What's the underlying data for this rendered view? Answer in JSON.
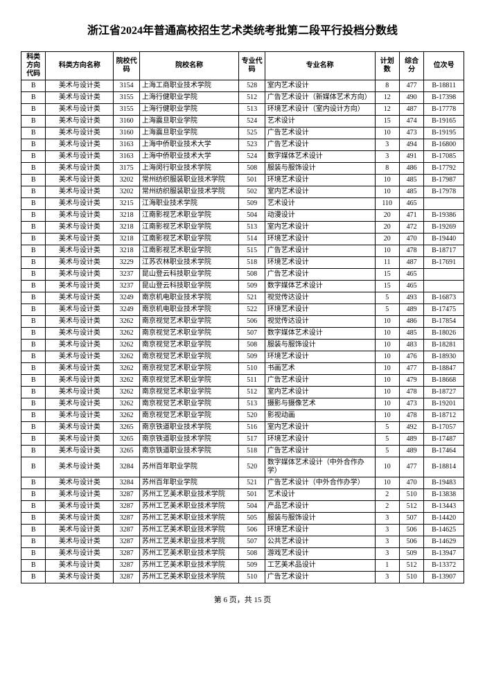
{
  "title": "浙江省2024年普通高校招生艺术类统考批第二段平行投档分数线",
  "footer": "第 6 页，共 15 页",
  "columns": [
    "科类方向代码",
    "科类方向名称",
    "院校代码",
    "院校名称",
    "专业代码",
    "专业名称",
    "计划数",
    "综合分",
    "位次号"
  ],
  "rows": [
    [
      "B",
      "美术与设计类",
      "3154",
      "上海工商职业技术学院",
      "528",
      "室内艺术设计",
      "8",
      "477",
      "B-18811"
    ],
    [
      "B",
      "美术与设计类",
      "3155",
      "上海行健职业学院",
      "512",
      "广告艺术设计（新媒体艺术方向）",
      "12",
      "490",
      "B-17398"
    ],
    [
      "B",
      "美术与设计类",
      "3155",
      "上海行健职业学院",
      "513",
      "环境艺术设计（室内设计方向）",
      "12",
      "487",
      "B-17778"
    ],
    [
      "B",
      "美术与设计类",
      "3160",
      "上海震旦职业学院",
      "524",
      "艺术设计",
      "15",
      "474",
      "B-19165"
    ],
    [
      "B",
      "美术与设计类",
      "3160",
      "上海震旦职业学院",
      "525",
      "广告艺术设计",
      "10",
      "473",
      "B-19195"
    ],
    [
      "B",
      "美术与设计类",
      "3163",
      "上海中侨职业技术大学",
      "523",
      "广告艺术设计",
      "3",
      "494",
      "B-16800"
    ],
    [
      "B",
      "美术与设计类",
      "3163",
      "上海中侨职业技术大学",
      "524",
      "数字媒体艺术设计",
      "3",
      "491",
      "B-17085"
    ],
    [
      "B",
      "美术与设计类",
      "3175",
      "上海闵行职业技术学院",
      "508",
      "服装与服饰设计",
      "8",
      "486",
      "B-17792"
    ],
    [
      "B",
      "美术与设计类",
      "3202",
      "常州纺织服装职业技术学院",
      "501",
      "环境艺术设计",
      "10",
      "485",
      "B-17987"
    ],
    [
      "B",
      "美术与设计类",
      "3202",
      "常州纺织服装职业技术学院",
      "502",
      "室内艺术设计",
      "10",
      "485",
      "B-17978"
    ],
    [
      "B",
      "美术与设计类",
      "3215",
      "江海职业技术学院",
      "509",
      "艺术设计",
      "110",
      "465",
      ""
    ],
    [
      "B",
      "美术与设计类",
      "3218",
      "江南影视艺术职业学院",
      "504",
      "动漫设计",
      "20",
      "471",
      "B-19386"
    ],
    [
      "B",
      "美术与设计类",
      "3218",
      "江南影视艺术职业学院",
      "513",
      "室内艺术设计",
      "20",
      "472",
      "B-19269"
    ],
    [
      "B",
      "美术与设计类",
      "3218",
      "江南影视艺术职业学院",
      "514",
      "环境艺术设计",
      "20",
      "470",
      "B-19440"
    ],
    [
      "B",
      "美术与设计类",
      "3218",
      "江南影视艺术职业学院",
      "515",
      "广告艺术设计",
      "10",
      "478",
      "B-18717"
    ],
    [
      "B",
      "美术与设计类",
      "3229",
      "江苏农林职业技术学院",
      "518",
      "环境艺术设计",
      "11",
      "487",
      "B-17691"
    ],
    [
      "B",
      "美术与设计类",
      "3237",
      "昆山登云科技职业学院",
      "508",
      "广告艺术设计",
      "15",
      "465",
      ""
    ],
    [
      "B",
      "美术与设计类",
      "3237",
      "昆山登云科技职业学院",
      "509",
      "数字媒体艺术设计",
      "15",
      "465",
      ""
    ],
    [
      "B",
      "美术与设计类",
      "3249",
      "南京机电职业技术学院",
      "521",
      "视觉传达设计",
      "5",
      "493",
      "B-16873"
    ],
    [
      "B",
      "美术与设计类",
      "3249",
      "南京机电职业技术学院",
      "522",
      "环境艺术设计",
      "5",
      "489",
      "B-17475"
    ],
    [
      "B",
      "美术与设计类",
      "3262",
      "南京视觉艺术职业学院",
      "506",
      "视觉传达设计",
      "10",
      "486",
      "B-17854"
    ],
    [
      "B",
      "美术与设计类",
      "3262",
      "南京视觉艺术职业学院",
      "507",
      "数字媒体艺术设计",
      "10",
      "485",
      "B-18026"
    ],
    [
      "B",
      "美术与设计类",
      "3262",
      "南京视觉艺术职业学院",
      "508",
      "服装与服饰设计",
      "10",
      "483",
      "B-18281"
    ],
    [
      "B",
      "美术与设计类",
      "3262",
      "南京视觉艺术职业学院",
      "509",
      "环境艺术设计",
      "10",
      "476",
      "B-18930"
    ],
    [
      "B",
      "美术与设计类",
      "3262",
      "南京视觉艺术职业学院",
      "510",
      "书画艺术",
      "10",
      "477",
      "B-18847"
    ],
    [
      "B",
      "美术与设计类",
      "3262",
      "南京视觉艺术职业学院",
      "511",
      "广告艺术设计",
      "10",
      "479",
      "B-18668"
    ],
    [
      "B",
      "美术与设计类",
      "3262",
      "南京视觉艺术职业学院",
      "512",
      "室内艺术设计",
      "10",
      "478",
      "B-18727"
    ],
    [
      "B",
      "美术与设计类",
      "3262",
      "南京视觉艺术职业学院",
      "513",
      "摄影与摄像艺术",
      "10",
      "473",
      "B-19201"
    ],
    [
      "B",
      "美术与设计类",
      "3262",
      "南京视觉艺术职业学院",
      "520",
      "影视动画",
      "10",
      "478",
      "B-18712"
    ],
    [
      "B",
      "美术与设计类",
      "3265",
      "南京铁道职业技术学院",
      "516",
      "室内艺术设计",
      "5",
      "492",
      "B-17057"
    ],
    [
      "B",
      "美术与设计类",
      "3265",
      "南京铁道职业技术学院",
      "517",
      "环境艺术设计",
      "5",
      "489",
      "B-17487"
    ],
    [
      "B",
      "美术与设计类",
      "3265",
      "南京铁道职业技术学院",
      "518",
      "广告艺术设计",
      "5",
      "489",
      "B-17464"
    ],
    [
      "B",
      "美术与设计类",
      "3284",
      "苏州百年职业学院",
      "520",
      "数字媒体艺术设计（中外合作办学）",
      "10",
      "477",
      "B-18814"
    ],
    [
      "B",
      "美术与设计类",
      "3284",
      "苏州百年职业学院",
      "521",
      "广告艺术设计（中外合作办学）",
      "10",
      "470",
      "B-19483"
    ],
    [
      "B",
      "美术与设计类",
      "3287",
      "苏州工艺美术职业技术学院",
      "501",
      "艺术设计",
      "2",
      "510",
      "B-13838"
    ],
    [
      "B",
      "美术与设计类",
      "3287",
      "苏州工艺美术职业技术学院",
      "504",
      "产品艺术设计",
      "2",
      "512",
      "B-13443"
    ],
    [
      "B",
      "美术与设计类",
      "3287",
      "苏州工艺美术职业技术学院",
      "505",
      "服装与服饰设计",
      "3",
      "507",
      "B-14420"
    ],
    [
      "B",
      "美术与设计类",
      "3287",
      "苏州工艺美术职业技术学院",
      "506",
      "环境艺术设计",
      "3",
      "506",
      "B-14625"
    ],
    [
      "B",
      "美术与设计类",
      "3287",
      "苏州工艺美术职业技术学院",
      "507",
      "公共艺术设计",
      "3",
      "506",
      "B-14629"
    ],
    [
      "B",
      "美术与设计类",
      "3287",
      "苏州工艺美术职业技术学院",
      "508",
      "游戏艺术设计",
      "3",
      "509",
      "B-13947"
    ],
    [
      "B",
      "美术与设计类",
      "3287",
      "苏州工艺美术职业技术学院",
      "509",
      "工艺美术品设计",
      "1",
      "512",
      "B-13372"
    ],
    [
      "B",
      "美术与设计类",
      "3287",
      "苏州工艺美术职业技术学院",
      "510",
      "广告艺术设计",
      "3",
      "510",
      "B-13907"
    ]
  ]
}
